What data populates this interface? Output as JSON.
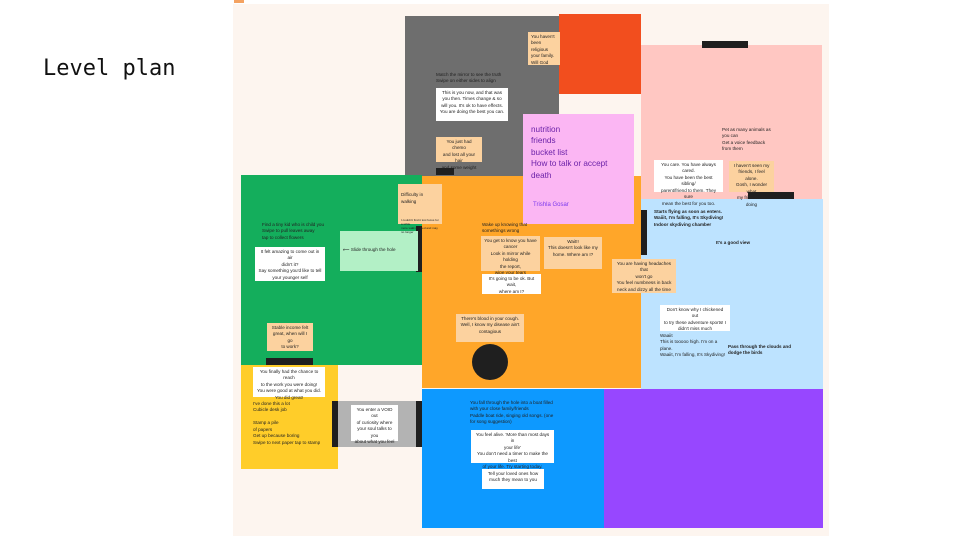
{
  "page": {
    "title": "Level plan"
  },
  "sticky": {
    "lines": "nutrition\nfriends\nbucket list\nHow to talk or accept\ndeath",
    "author": "Trishla Gosar"
  },
  "gray": {
    "intro": "Match the mirror to see the truth\nSwipe on either sides to align",
    "mirror_note": "This is you now, and that was you then. Times change & so will you. It's ok to have effects. You are doing the best you can.",
    "chemo_note": "You just had chemo\nand lost all your hair\nand some weight",
    "religion_note": "You haven't\nbeen religious\nyour family.\nWill God save"
  },
  "pink": {
    "intro": "Pet as many animals as\nyou can\nGet a voice feedback\nfrom them",
    "care_note": "You care. You have always cared.\nYou have been the best sibling/\nparent/friend to them. They sure\nmean the best for you too.",
    "friends_note": "I haven't seen my\nfriends, I feel alone.\nGosh, I wonder what\nmy friends are doing"
  },
  "green": {
    "intro": "Find a tiny kid who is child you\nSwipe to pull leaves away\ntap to collect flowers",
    "amazing_note": "It felt amazing to come out in air\ndidn't it?\nSay something you'd like to tell\nyour younger self",
    "slide_note": "⟵ Slide through the hole",
    "walking_note": "Difficulty in walking",
    "walking_sub": "I couldn't find it lost focus for a while\nmore walk needed and may no longer",
    "income_note": "Stable income felt\ngreat, when will I go\nto work?"
  },
  "orange": {
    "intro": "Wake up knowing that\nsomethings wrong",
    "cancer_note": "You get to know you have\ncancer\nLook in mirror while holding\nthe report,\nwipe your tears",
    "wait_note": "Wait!!\nThis doesn't look like my\nhome. Where am I?",
    "ok_note": "It's going to be ok. But wait,\nwhere am I?",
    "headache_note": "You are having headaches that\nwon't go\nYou feel numbness in back\nneck and dizzy all the time",
    "blood_note": "There's blood in your cough.\nWell, I know my disease ain't\ncontagious"
  },
  "blue": {
    "intro": "Starts flying as soon as enters.\nWaiiit, I'm falling, It's Skydiving!\nIndoor skydiving chamber",
    "good_view": "It's a good view",
    "adventure_note": "Don't know why I chickened out\nto try these adventure sports! I\ndidn't miss much",
    "wait_text": "Waaiit\nThis is tooooo high. I'm on a\nplane.\nWaaiit, I'm falling, It's Skydiving!",
    "clouds_text": "Pass through the clouds and\ndodge the birds"
  },
  "yellow": {
    "chance_note": "You finally had the chance to reach\nto the work you were doing!\nYou were good at what you did.\nYou did great!",
    "desk_text": "I've done this a lot\nCubicle desk job\n\nStamp a pile\nof papers\nGet up because boring\nSwipe to next paper tap to stamp"
  },
  "void_note": "You enter a VOID out\nof curiosity where\nyour soul talks to you\nabout what you feel",
  "bottom_blue": {
    "intro": "You fall through the hole into a boat filled\nwith your close family/friends\nPaddle boat ride, singing old songs. (one\nfor song suggestion)",
    "alive_note": "You feel alive. 'More than most days in\nyour life'\nYou don't need a timer to make the best\nof your life. Try starting today.",
    "loved_note": "Tell your loved ones how\nmuch they mean to you"
  },
  "colors": {
    "board": "#fdf5ef",
    "gray": "#6e6e6e",
    "red": "#f24e1e",
    "pink": "#ffc7c2",
    "magenta": "#fbb6f3",
    "green": "#14ae5c",
    "orange": "#ffa629",
    "light_blue": "#bde3ff",
    "yellow": "#ffcd29",
    "blue": "#0d99ff",
    "purple": "#9747ff",
    "void": "#b3b3b3",
    "dark": "#1f1f1f"
  }
}
